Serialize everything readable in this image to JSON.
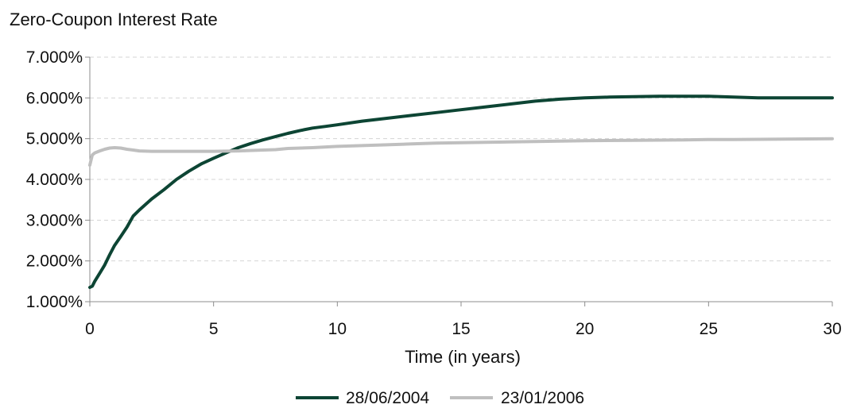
{
  "chart_data": {
    "type": "line",
    "title": "Zero-Coupon Interest Rate",
    "xlabel": "Time (in years)",
    "ylabel": "",
    "xlim": [
      0,
      30
    ],
    "ylim": [
      0.01,
      0.07
    ],
    "x_ticks": [
      0,
      5,
      10,
      15,
      20,
      25,
      30
    ],
    "x_tick_labels": [
      "0",
      "5",
      "10",
      "15",
      "20",
      "25",
      "30"
    ],
    "y_ticks": [
      0.01,
      0.02,
      0.03,
      0.04,
      0.05,
      0.06,
      0.07
    ],
    "y_tick_labels": [
      "1.000%",
      "2.000%",
      "3.000%",
      "4.000%",
      "5.000%",
      "6.000%",
      "7.000%"
    ],
    "grid": "horizontal-dashed",
    "legend_position": "bottom-center",
    "series": [
      {
        "name": "28/06/2004",
        "color": "#0d4534",
        "x": [
          0,
          0.1,
          0.2,
          0.4,
          0.6,
          0.8,
          1,
          1.25,
          1.5,
          1.75,
          2,
          2.5,
          3,
          3.5,
          4,
          4.5,
          5,
          5.5,
          6,
          6.5,
          7,
          7.5,
          8,
          8.5,
          9,
          9.5,
          10,
          11,
          12,
          13,
          14,
          15,
          16,
          17,
          18,
          19,
          20,
          21,
          22,
          23,
          24,
          25,
          26,
          27,
          28,
          29,
          30
        ],
        "values": [
          0.0135,
          0.0138,
          0.015,
          0.017,
          0.019,
          0.0215,
          0.0238,
          0.026,
          0.0283,
          0.031,
          0.0325,
          0.0352,
          0.0375,
          0.04,
          0.042,
          0.0438,
          0.0452,
          0.0465,
          0.0478,
          0.0488,
          0.0497,
          0.0505,
          0.0513,
          0.052,
          0.0526,
          0.053,
          0.0534,
          0.0543,
          0.055,
          0.0557,
          0.0564,
          0.0571,
          0.0578,
          0.0585,
          0.0592,
          0.0597,
          0.06,
          0.0602,
          0.0603,
          0.0604,
          0.0604,
          0.0604,
          0.0602,
          0.06,
          0.06,
          0.06,
          0.06
        ]
      },
      {
        "name": "23/01/2006",
        "color": "#bfbfbf",
        "x": [
          0,
          0.1,
          0.2,
          0.4,
          0.6,
          0.8,
          1,
          1.25,
          1.5,
          1.75,
          2,
          2.5,
          3,
          4,
          5,
          6,
          7,
          7.5,
          8,
          9,
          10,
          11,
          12,
          13,
          14,
          15,
          16,
          17,
          18,
          19,
          20,
          22,
          24,
          25,
          26,
          28,
          30
        ],
        "values": [
          0.0435,
          0.046,
          0.0465,
          0.047,
          0.0474,
          0.0477,
          0.0478,
          0.0477,
          0.0474,
          0.0472,
          0.047,
          0.0469,
          0.0469,
          0.0469,
          0.0469,
          0.047,
          0.0472,
          0.0473,
          0.0476,
          0.0478,
          0.0481,
          0.0483,
          0.0485,
          0.0487,
          0.0489,
          0.049,
          0.0491,
          0.0492,
          0.0493,
          0.0494,
          0.0495,
          0.0496,
          0.0497,
          0.0498,
          0.0498,
          0.0499,
          0.05
        ]
      }
    ]
  }
}
